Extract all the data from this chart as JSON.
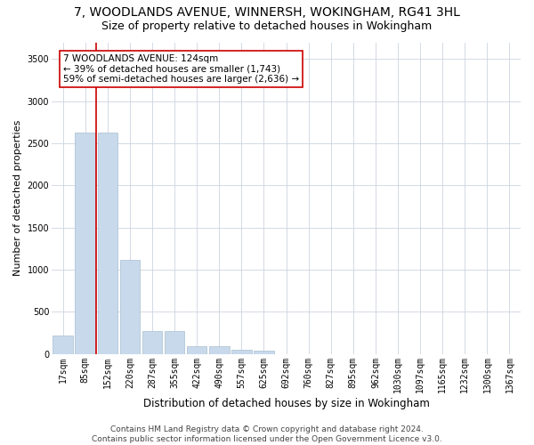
{
  "title": "7, WOODLANDS AVENUE, WINNERSH, WOKINGHAM, RG41 3HL",
  "subtitle": "Size of property relative to detached houses in Wokingham",
  "xlabel": "Distribution of detached houses by size in Wokingham",
  "ylabel": "Number of detached properties",
  "categories": [
    "17sqm",
    "85sqm",
    "152sqm",
    "220sqm",
    "287sqm",
    "355sqm",
    "422sqm",
    "490sqm",
    "557sqm",
    "625sqm",
    "692sqm",
    "760sqm",
    "827sqm",
    "895sqm",
    "962sqm",
    "1030sqm",
    "1097sqm",
    "1165sqm",
    "1232sqm",
    "1300sqm",
    "1367sqm"
  ],
  "values": [
    215,
    2630,
    2630,
    1120,
    265,
    265,
    95,
    90,
    50,
    40,
    0,
    0,
    0,
    0,
    0,
    0,
    0,
    0,
    0,
    0,
    0
  ],
  "bar_color": "#c8d9eb",
  "bar_edge_color": "#a8bfd0",
  "vline_color": "#cc0000",
  "vline_x_idx": 1.5,
  "annotation_text": "7 WOODLANDS AVENUE: 124sqm\n← 39% of detached houses are smaller (1,743)\n59% of semi-detached houses are larger (2,636) →",
  "annotation_box_color": "#ffffff",
  "annotation_box_edge": "#cc0000",
  "ylim": [
    0,
    3700
  ],
  "yticks": [
    0,
    500,
    1000,
    1500,
    2000,
    2500,
    3000,
    3500
  ],
  "background_color": "#ffffff",
  "grid_color": "#ccd5e0",
  "footer": "Contains HM Land Registry data © Crown copyright and database right 2024.\nContains public sector information licensed under the Open Government Licence v3.0.",
  "title_fontsize": 10,
  "subtitle_fontsize": 9,
  "xlabel_fontsize": 8.5,
  "ylabel_fontsize": 8,
  "tick_fontsize": 7,
  "footer_fontsize": 6.5,
  "annot_fontsize": 7.5
}
